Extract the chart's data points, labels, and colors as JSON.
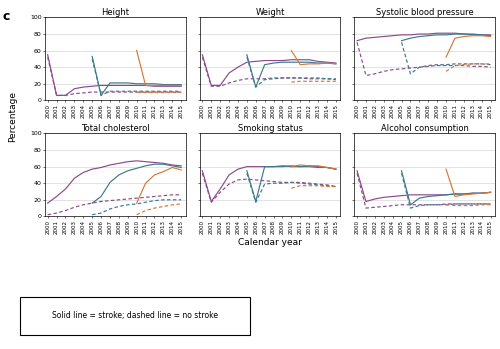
{
  "years": [
    2000,
    2001,
    2002,
    2003,
    2004,
    2005,
    2006,
    2007,
    2008,
    2009,
    2010,
    2011,
    2012,
    2013,
    2014,
    2015
  ],
  "colors": {
    "c2000": "#8B4A8B",
    "c2005": "#3a7a8c",
    "c2010": "#d4783a"
  },
  "subplots": [
    {
      "title": "Height",
      "solid": {
        "c2000": [
          55,
          6,
          6,
          14,
          16,
          17,
          18,
          18,
          18,
          18,
          18,
          18,
          17,
          17,
          17,
          17
        ],
        "c2005": [
          null,
          null,
          null,
          null,
          null,
          53,
          6,
          21,
          21,
          21,
          20,
          20,
          20,
          19,
          19,
          19
        ],
        "c2010": [
          null,
          null,
          null,
          null,
          null,
          null,
          null,
          null,
          null,
          null,
          60,
          18,
          18,
          18,
          18,
          18
        ]
      },
      "dashed": {
        "c2000": [
          52,
          6,
          6,
          8,
          9,
          10,
          10,
          10,
          10,
          10,
          10,
          10,
          10,
          10,
          10,
          10
        ],
        "c2005": [
          null,
          null,
          null,
          null,
          null,
          50,
          6,
          11,
          11,
          11,
          11,
          11,
          11,
          11,
          11,
          11
        ],
        "c2010": [
          null,
          null,
          null,
          null,
          null,
          null,
          null,
          null,
          null,
          null,
          10,
          10,
          10,
          10,
          10,
          10
        ]
      }
    },
    {
      "title": "Weight",
      "solid": {
        "c2000": [
          55,
          18,
          18,
          33,
          40,
          46,
          47,
          48,
          48,
          48,
          49,
          49,
          49,
          47,
          46,
          45
        ],
        "c2005": [
          null,
          null,
          null,
          null,
          null,
          55,
          16,
          43,
          45,
          46,
          46,
          46,
          46,
          45,
          45,
          44
        ],
        "c2010": [
          null,
          null,
          null,
          null,
          null,
          null,
          null,
          null,
          null,
          null,
          60,
          43,
          44,
          44,
          45,
          44
        ]
      },
      "dashed": {
        "c2000": [
          52,
          17,
          17,
          21,
          24,
          26,
          26,
          26,
          27,
          27,
          27,
          27,
          26,
          26,
          26,
          25
        ],
        "c2005": [
          null,
          null,
          null,
          null,
          null,
          52,
          16,
          25,
          26,
          27,
          27,
          27,
          27,
          27,
          26,
          26
        ],
        "c2010": [
          null,
          null,
          null,
          null,
          null,
          null,
          null,
          null,
          null,
          null,
          22,
          23,
          23,
          23,
          23,
          23
        ]
      }
    },
    {
      "title": "Systolic blood pressure",
      "solid": {
        "c2000": [
          72,
          75,
          76,
          77,
          78,
          79,
          79,
          80,
          80,
          81,
          81,
          81,
          80,
          80,
          79,
          79
        ],
        "c2005": [
          null,
          null,
          null,
          null,
          null,
          72,
          75,
          77,
          78,
          79,
          79,
          80,
          80,
          79,
          79,
          78
        ],
        "c2010": [
          null,
          null,
          null,
          null,
          null,
          null,
          null,
          null,
          null,
          null,
          52,
          75,
          77,
          78,
          78,
          77
        ]
      },
      "dashed": {
        "c2000": [
          70,
          30,
          32,
          35,
          37,
          38,
          39,
          40,
          41,
          42,
          42,
          42,
          42,
          41,
          41,
          40
        ],
        "c2005": [
          null,
          null,
          null,
          null,
          null,
          70,
          32,
          40,
          42,
          43,
          43,
          44,
          44,
          44,
          44,
          43
        ],
        "c2010": [
          null,
          null,
          null,
          null,
          null,
          null,
          null,
          null,
          null,
          null,
          35,
          42,
          43,
          44,
          44,
          44
        ]
      }
    },
    {
      "title": "Total cholesterol",
      "solid": {
        "c2000": [
          16,
          24,
          33,
          46,
          53,
          57,
          59,
          62,
          64,
          66,
          67,
          66,
          65,
          64,
          62,
          61
        ],
        "c2005": [
          null,
          null,
          null,
          null,
          null,
          16,
          24,
          41,
          50,
          55,
          58,
          61,
          63,
          63,
          61,
          59
        ],
        "c2010": [
          null,
          null,
          null,
          null,
          null,
          null,
          null,
          null,
          null,
          null,
          16,
          40,
          50,
          54,
          59,
          56
        ]
      },
      "dashed": {
        "c2000": [
          2,
          4,
          7,
          11,
          14,
          16,
          18,
          19,
          20,
          21,
          22,
          23,
          24,
          25,
          26,
          26
        ],
        "c2005": [
          null,
          null,
          null,
          null,
          null,
          2,
          4,
          9,
          12,
          14,
          15,
          17,
          19,
          20,
          20,
          20
        ],
        "c2010": [
          null,
          null,
          null,
          null,
          null,
          null,
          null,
          null,
          null,
          null,
          2,
          7,
          10,
          12,
          14,
          15
        ]
      }
    },
    {
      "title": "Smoking status",
      "solid": {
        "c2000": [
          55,
          18,
          33,
          50,
          57,
          60,
          60,
          60,
          60,
          61,
          60,
          60,
          61,
          60,
          59,
          57
        ],
        "c2005": [
          null,
          null,
          null,
          null,
          null,
          55,
          18,
          60,
          60,
          60,
          61,
          60,
          60,
          59,
          59,
          57
        ],
        "c2010": [
          null,
          null,
          null,
          null,
          null,
          null,
          null,
          null,
          null,
          null,
          60,
          62,
          61,
          61,
          59,
          57
        ]
      },
      "dashed": {
        "c2000": [
          52,
          17,
          29,
          39,
          44,
          45,
          44,
          43,
          42,
          41,
          41,
          41,
          40,
          39,
          38,
          36
        ],
        "c2005": [
          null,
          null,
          null,
          null,
          null,
          52,
          17,
          39,
          40,
          40,
          41,
          40,
          39,
          38,
          37,
          36
        ],
        "c2010": [
          null,
          null,
          null,
          null,
          null,
          null,
          null,
          null,
          null,
          null,
          34,
          37,
          37,
          37,
          36,
          36
        ]
      }
    },
    {
      "title": "Alcohol consumption",
      "solid": {
        "c2000": [
          55,
          18,
          21,
          23,
          24,
          25,
          26,
          26,
          26,
          26,
          26,
          27,
          27,
          28,
          28,
          29
        ],
        "c2005": [
          null,
          null,
          null,
          null,
          null,
          55,
          14,
          22,
          24,
          25,
          26,
          27,
          27,
          28,
          28,
          29
        ],
        "c2010": [
          null,
          null,
          null,
          null,
          null,
          null,
          null,
          null,
          null,
          null,
          57,
          24,
          26,
          27,
          28,
          29
        ]
      },
      "dashed": {
        "c2000": [
          52,
          10,
          11,
          12,
          13,
          14,
          14,
          14,
          14,
          14,
          15,
          15,
          15,
          15,
          15,
          15
        ],
        "c2005": [
          null,
          null,
          null,
          null,
          null,
          52,
          10,
          13,
          14,
          14,
          14,
          15,
          15,
          15,
          15,
          15
        ],
        "c2010": [
          null,
          null,
          null,
          null,
          null,
          null,
          null,
          null,
          null,
          null,
          14,
          13,
          13,
          13,
          14,
          14
        ]
      }
    }
  ],
  "legend_text": "Solid line = stroke; dashed line = no stroke",
  "xlabel": "Calendar year",
  "ylabel": "Percentage",
  "panel_label": "c",
  "yticks": [
    0,
    20,
    40,
    60,
    80,
    100
  ],
  "ylim": [
    0,
    100
  ]
}
